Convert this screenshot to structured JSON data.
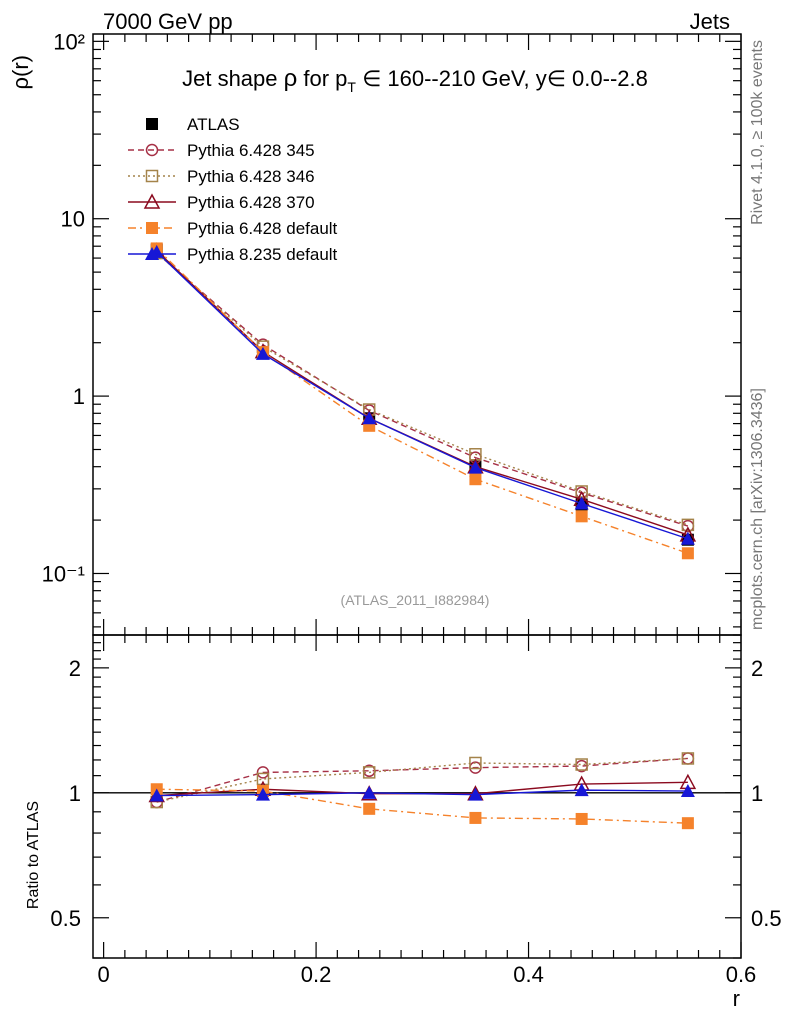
{
  "header": {
    "energy": "7000 GeV pp",
    "category": "Jets"
  },
  "side_labels": {
    "rivet": "Rivet 4.1.0, ≥ 100k events",
    "mcplots": "mcplots.cern.ch [arXiv:1306.3436]"
  },
  "analysis_ref": "(ATLAS_2011_I882984)",
  "chart_data": [
    {
      "type": "line",
      "title_parts": [
        "Jet shape ",
        "ρ",
        " for p",
        "T",
        " ∈ 160--210 GeV, y∈ 0.0--2.8"
      ],
      "ylabel": "ρ(r)",
      "yscale": "log",
      "ylim": [
        0.045,
        110
      ],
      "xlim": [
        -0.01,
        0.6
      ],
      "x": [
        0.05,
        0.15,
        0.25,
        0.35,
        0.45,
        0.55
      ],
      "ytick_labels": [
        "10²",
        "10",
        "1",
        "10⁻¹"
      ],
      "ytick_values": [
        100,
        10,
        1,
        0.1
      ],
      "series": [
        {
          "name": "ATLAS",
          "color": "#000000",
          "marker": "square-filled",
          "line": "none",
          "values": [
            6.7,
            1.75,
            0.75,
            0.4,
            0.245,
            0.155
          ]
        },
        {
          "name": "Pythia 6.428 345",
          "color": "#a63046",
          "marker": "circle-open",
          "line": "dashed",
          "values": [
            6.4,
            1.95,
            0.83,
            0.45,
            0.285,
            0.185
          ]
        },
        {
          "name": "Pythia 6.428 346",
          "color": "#a4834a",
          "marker": "square-open",
          "line": "dotted",
          "values": [
            6.4,
            1.9,
            0.84,
            0.47,
            0.29,
            0.188
          ]
        },
        {
          "name": "Pythia 6.428 370",
          "color": "#8b0a1f",
          "marker": "triangle-open",
          "line": "solid",
          "values": [
            6.6,
            1.78,
            0.75,
            0.4,
            0.262,
            0.165
          ]
        },
        {
          "name": "Pythia 6.428 default",
          "color": "#f5822b",
          "marker": "square-filled",
          "line": "dashdot",
          "values": [
            6.8,
            1.77,
            0.68,
            0.34,
            0.21,
            0.13
          ]
        },
        {
          "name": "Pythia 8.235 default",
          "color": "#1717d6",
          "marker": "triangle-filled",
          "line": "solid",
          "values": [
            6.5,
            1.73,
            0.75,
            0.395,
            0.248,
            0.157
          ]
        }
      ]
    },
    {
      "type": "line",
      "ylabel": "Ratio to ATLAS",
      "xlabel": "r",
      "yscale": "log",
      "ylim": [
        0.4,
        2.4
      ],
      "xlim": [
        -0.01,
        0.6
      ],
      "x": [
        0.05,
        0.15,
        0.25,
        0.35,
        0.45,
        0.55
      ],
      "ytick_labels": [
        "2",
        "1",
        "0.5"
      ],
      "ytick_values": [
        2,
        1,
        0.5
      ],
      "xtick_labels": [
        "0",
        "0.2",
        "0.4",
        "0.6"
      ],
      "xtick_values": [
        0,
        0.2,
        0.4,
        0.6
      ],
      "series": [
        {
          "name": "Pythia 6.428 345",
          "color": "#a63046",
          "marker": "circle-open",
          "line": "dashed",
          "values": [
            0.95,
            1.12,
            1.13,
            1.15,
            1.16,
            1.21
          ]
        },
        {
          "name": "Pythia 6.428 346",
          "color": "#a4834a",
          "marker": "square-open",
          "line": "dotted",
          "values": [
            0.95,
            1.08,
            1.12,
            1.18,
            1.17,
            1.21
          ]
        },
        {
          "name": "Pythia 6.428 370",
          "color": "#8b0a1f",
          "marker": "triangle-open",
          "line": "solid",
          "values": [
            0.985,
            1.02,
            0.995,
            0.995,
            1.05,
            1.06
          ]
        },
        {
          "name": "Pythia 6.428 default",
          "color": "#f5822b",
          "marker": "square-filled",
          "line": "dashdot",
          "values": [
            1.02,
            1.01,
            0.915,
            0.87,
            0.865,
            0.845
          ]
        },
        {
          "name": "Pythia 8.235 default",
          "color": "#1717d6",
          "marker": "triangle-filled",
          "line": "solid",
          "values": [
            0.985,
            0.99,
            1.0,
            0.99,
            1.015,
            1.01
          ]
        }
      ]
    }
  ]
}
